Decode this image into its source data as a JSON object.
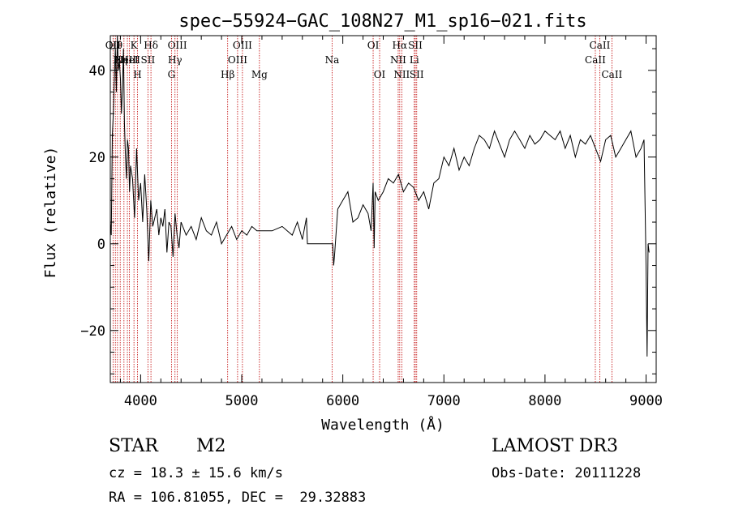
{
  "chart_data": {
    "type": "line",
    "title": "spec−55924−GAC_108N27_M1_sp16−021.fits",
    "xlabel": "Wavelength (Å)",
    "ylabel": "Flux (relative)",
    "xlim": [
      3700,
      9100
    ],
    "ylim": [
      -32,
      48
    ],
    "grid": false,
    "xticks": [
      {
        "value": 4000,
        "label": "4000"
      },
      {
        "value": 5000,
        "label": "5000"
      },
      {
        "value": 6000,
        "label": "6000"
      },
      {
        "value": 7000,
        "label": "7000"
      },
      {
        "value": 8000,
        "label": "8000"
      },
      {
        "value": 9000,
        "label": "9000"
      }
    ],
    "yticks": [
      {
        "value": -20,
        "label": "−20"
      },
      {
        "value": 0,
        "label": "0"
      },
      {
        "value": 20,
        "label": "20"
      },
      {
        "value": 40,
        "label": "40"
      }
    ],
    "series": [
      {
        "x": [
          3700,
          3710,
          3720,
          3730,
          3740,
          3750,
          3760,
          3770,
          3780,
          3790,
          3800,
          3810,
          3820,
          3830,
          3840,
          3850,
          3860,
          3870,
          3880,
          3890,
          3900,
          3920,
          3940,
          3960,
          3980,
          4000,
          4020,
          4040,
          4060,
          4080,
          4100,
          4120,
          4140,
          4160,
          4180,
          4200,
          4220,
          4240,
          4260,
          4280,
          4300,
          4320,
          4340,
          4360,
          4380,
          4400,
          4450,
          4500,
          4550,
          4600,
          4650,
          4700,
          4750,
          4800,
          4850,
          4900,
          4950,
          5000,
          5050,
          5100,
          5150,
          5200,
          5300,
          5400,
          5500,
          5550,
          5600,
          5640,
          5650,
          5900,
          5910,
          5920,
          5950,
          6000,
          6050,
          6100,
          6150,
          6200,
          6250,
          6280,
          6300,
          6310,
          6320,
          6350,
          6400,
          6450,
          6500,
          6550,
          6600,
          6650,
          6700,
          6750,
          6800,
          6850,
          6900,
          6950,
          7000,
          7050,
          7100,
          7150,
          7200,
          7250,
          7300,
          7350,
          7400,
          7450,
          7500,
          7550,
          7600,
          7650,
          7700,
          7750,
          7800,
          7850,
          7900,
          7950,
          8000,
          8050,
          8100,
          8150,
          8200,
          8250,
          8300,
          8350,
          8400,
          8450,
          8500,
          8550,
          8600,
          8650,
          8700,
          8750,
          8800,
          8850,
          8900,
          8950,
          8980,
          9000,
          9010,
          9020,
          9030
        ],
        "y": [
          5,
          2,
          25,
          30,
          38,
          45,
          35,
          48,
          40,
          42,
          38,
          30,
          36,
          45,
          28,
          20,
          15,
          24,
          22,
          12,
          18,
          15,
          6,
          22,
          10,
          14,
          5,
          16,
          8,
          -4,
          10,
          4,
          6,
          8,
          2,
          6,
          4,
          8,
          -2,
          5,
          4,
          -3,
          7,
          2,
          -1,
          5,
          2,
          4,
          1,
          6,
          3,
          2,
          5,
          0,
          2,
          4,
          1,
          3,
          2,
          4,
          3,
          3,
          3,
          4,
          2,
          5,
          1,
          6,
          0,
          0,
          -5,
          -2,
          8,
          10,
          12,
          5,
          6,
          9,
          7,
          3,
          14,
          -1,
          12,
          10,
          12,
          15,
          14,
          16,
          12,
          14,
          13,
          10,
          12,
          8,
          14,
          15,
          20,
          18,
          22,
          17,
          20,
          18,
          22,
          25,
          24,
          22,
          26,
          23,
          20,
          24,
          26,
          24,
          22,
          25,
          23,
          24,
          26,
          25,
          24,
          26,
          22,
          25,
          20,
          24,
          23,
          25,
          22,
          19,
          24,
          25,
          20,
          22,
          24,
          26,
          20,
          22,
          24,
          -5,
          -26,
          0,
          -2
        ],
        "name": ""
      }
    ],
    "lines": [
      {
        "x": 3727,
        "top": "OII",
        "mid": "",
        "bot": ""
      },
      {
        "x": 3750,
        "top": "Hθ",
        "mid": "",
        "bot": ""
      },
      {
        "x": 3771,
        "top": "",
        "mid": "",
        "bot": ""
      },
      {
        "x": 3798,
        "top": "",
        "mid": "Hη",
        "bot": ""
      },
      {
        "x": 3835,
        "top": "",
        "mid": "",
        "bot": ""
      },
      {
        "x": 3869,
        "top": "",
        "mid": "NeIII",
        "bot": ""
      },
      {
        "x": 3889,
        "top": "",
        "mid": "HeI",
        "bot": ""
      },
      {
        "x": 3934,
        "top": "K",
        "mid": "",
        "bot": ""
      },
      {
        "x": 3969,
        "top": "",
        "mid": "",
        "bot": "H"
      },
      {
        "x": 4072,
        "top": "",
        "mid": "SII",
        "bot": ""
      },
      {
        "x": 4102,
        "top": "Hδ",
        "mid": "",
        "bot": ""
      },
      {
        "x": 4305,
        "top": "",
        "mid": "",
        "bot": "G"
      },
      {
        "x": 4340,
        "top": "",
        "mid": "Hγ",
        "bot": ""
      },
      {
        "x": 4363,
        "top": "OIII",
        "mid": "",
        "bot": ""
      },
      {
        "x": 4861,
        "top": "",
        "mid": "",
        "bot": "Hβ"
      },
      {
        "x": 4959,
        "top": "",
        "mid": "OIII",
        "bot": ""
      },
      {
        "x": 5007,
        "top": "OIII",
        "mid": "",
        "bot": ""
      },
      {
        "x": 5175,
        "top": "",
        "mid": "",
        "bot": "Mg"
      },
      {
        "x": 5894,
        "top": "",
        "mid": "Na",
        "bot": ""
      },
      {
        "x": 6300,
        "top": "OI",
        "mid": "",
        "bot": ""
      },
      {
        "x": 6364,
        "top": "",
        "mid": "",
        "bot": "OI"
      },
      {
        "x": 6548,
        "top": "",
        "mid": "NII",
        "bot": ""
      },
      {
        "x": 6563,
        "top": "Hα",
        "mid": "",
        "bot": ""
      },
      {
        "x": 6583,
        "top": "",
        "mid": "",
        "bot": "NII"
      },
      {
        "x": 6707,
        "top": "",
        "mid": "Li",
        "bot": ""
      },
      {
        "x": 6717,
        "top": "SII",
        "mid": "",
        "bot": ""
      },
      {
        "x": 6731,
        "top": "",
        "mid": "",
        "bot": "SII"
      },
      {
        "x": 8498,
        "top": "",
        "mid": "CaII",
        "bot": ""
      },
      {
        "x": 8542,
        "top": "CaII",
        "mid": "",
        "bot": ""
      },
      {
        "x": 8662,
        "top": "",
        "mid": "",
        "bot": "CaII"
      }
    ]
  },
  "info": {
    "object_class": "STAR",
    "subclass": "M2",
    "survey": "LAMOST DR3",
    "cz": "cz = 18.3 ± 15.6 km/s",
    "obs_date": "Obs-Date: 20111228",
    "coords": "RA = 106.81055, DEC =  29.32883"
  }
}
